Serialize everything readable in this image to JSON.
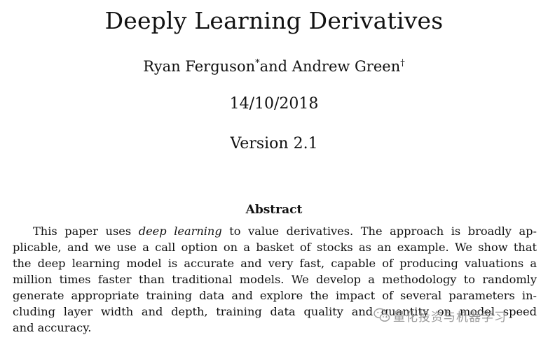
{
  "paper": {
    "title": "Deeply Learning Derivatives",
    "author1": "Ryan Ferguson",
    "author1_mark": "*",
    "author_join": "and Andrew Green",
    "author2_mark": "†",
    "date": "14/10/2018",
    "version": "Version 2.1"
  },
  "abstract": {
    "heading": "Abstract",
    "lines": [
      {
        "pre": "This paper uses ",
        "em": "deep learning",
        "post": " to value derivatives. The approach is broadly ap-"
      },
      {
        "text": "plicable, and we use a call option on a basket of stocks as an example. We show that"
      },
      {
        "text": "the deep learning model is accurate and very fast, capable of producing valuations a"
      },
      {
        "text": "million times faster than traditional models. We develop a methodology to randomly"
      },
      {
        "text": "generate appropriate training data and explore the impact of several parameters in-"
      },
      {
        "text": "cluding layer width and depth, training data quality and quantity on model speed"
      },
      {
        "text": "and accuracy."
      }
    ]
  },
  "watermark": {
    "text": "量化投资与机器学习",
    "icon": "wechat-icon"
  }
}
